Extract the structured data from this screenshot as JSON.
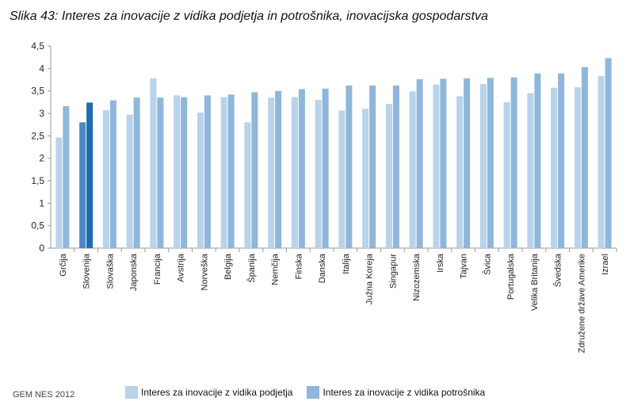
{
  "title": "Slika 43: Interes za inovacije z vidika podjetja in potrošnika, inovacijska gospodarstva",
  "source": "GEM NES 2012",
  "colors": {
    "podjetje": "#b8d3ea",
    "potrosnik": "#8fb6db",
    "highlight_podjetje": "#4e88c2",
    "highlight_potrosnik": "#1f6bb0",
    "axis": "#9a9a9a"
  },
  "legend": [
    {
      "label": "Interes za inovacije z vidika podjetja",
      "color": "#b8d3ea"
    },
    {
      "label": "Interes za inovacije z vidika potrošnika",
      "color": "#8fb6db"
    }
  ],
  "chart_data": {
    "type": "bar",
    "title": "Slika 43: Interes za inovacije z vidika podjetja in potrošnika, inovacijska gospodarstva",
    "xlabel": "",
    "ylabel": "",
    "ylim": [
      0,
      4.5
    ],
    "yticks": [
      "0",
      "0,5",
      "1",
      "1,5",
      "2",
      "2,5",
      "3",
      "3,5",
      "4",
      "4,5"
    ],
    "grid": false,
    "legend_position": "bottom",
    "highlight": "Slovenija",
    "categories": [
      "Grčija",
      "Slovenija",
      "Slovaška",
      "Japonska",
      "Francija",
      "Avstrija",
      "Norveška",
      "Belgija",
      "Španija",
      "Nemčija",
      "Finska",
      "Danska",
      "Italija",
      "Južna Koreja",
      "Singapur",
      "Nizozemska",
      "Irska",
      "Tajvan",
      "Švica",
      "Portugalska",
      "Velika Britanija",
      "Švedska",
      "Združene države Amerike",
      "Izrael"
    ],
    "series": [
      {
        "name": "Interes za inovacije z vidika podjetja",
        "values": [
          2.46,
          2.8,
          3.07,
          2.97,
          3.78,
          3.4,
          3.02,
          3.36,
          2.8,
          3.35,
          3.36,
          3.3,
          3.06,
          3.1,
          3.21,
          3.49,
          3.64,
          3.38,
          3.65,
          3.25,
          3.45,
          3.57,
          3.58,
          3.83
        ]
      },
      {
        "name": "Interes za inovacije z vidika potrošnika",
        "values": [
          3.16,
          3.24,
          3.29,
          3.35,
          3.35,
          3.36,
          3.4,
          3.42,
          3.47,
          3.5,
          3.54,
          3.55,
          3.62,
          3.62,
          3.62,
          3.76,
          3.77,
          3.78,
          3.79,
          3.8,
          3.89,
          3.89,
          4.03,
          4.23
        ]
      }
    ]
  }
}
